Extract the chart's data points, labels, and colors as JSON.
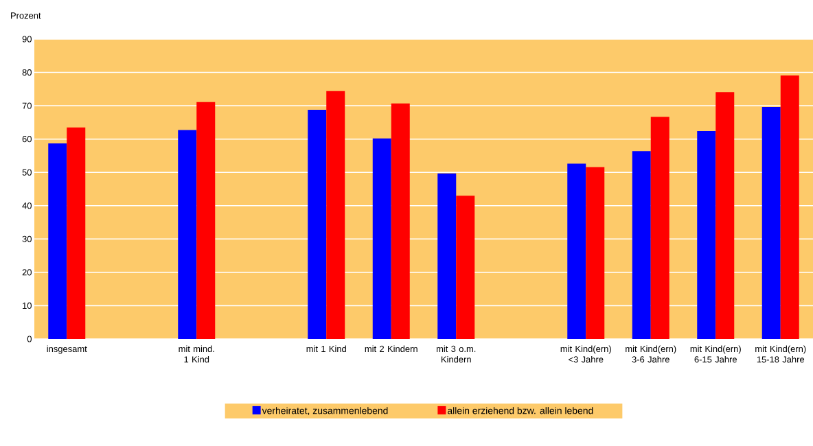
{
  "chart_data": {
    "type": "bar",
    "ylabel": "Prozent",
    "categories": [
      "insgesamt",
      null,
      "mit mind. 1 Kind",
      null,
      "mit 1 Kind",
      "mit 2 Kindern",
      "mit 3 o.m. Kindern",
      null,
      "mit Kind(ern) <3 Jahre",
      "mit Kind(ern) 3-6 Jahre",
      "mit Kind(ern) 6-15 Jahre",
      "mit Kind(ern) 15-18 Jahre"
    ],
    "series": [
      {
        "name": "verheiratet, zusammenlebend",
        "color": "#0000ff",
        "values": [
          58.7,
          null,
          62.7,
          null,
          68.8,
          60.2,
          49.7,
          null,
          52.6,
          56.4,
          62.4,
          69.6
        ]
      },
      {
        "name": "allein erziehend bzw. allein lebend",
        "color": "#ff0000",
        "values": [
          63.5,
          null,
          71.1,
          null,
          74.4,
          70.7,
          43.0,
          null,
          51.6,
          66.7,
          74.1,
          79.1
        ]
      }
    ],
    "ylim": [
      0,
      90
    ],
    "yticks": [
      0,
      10,
      20,
      30,
      40,
      50,
      60,
      70,
      80,
      90
    ],
    "grid": "y",
    "legend": "bottom"
  }
}
